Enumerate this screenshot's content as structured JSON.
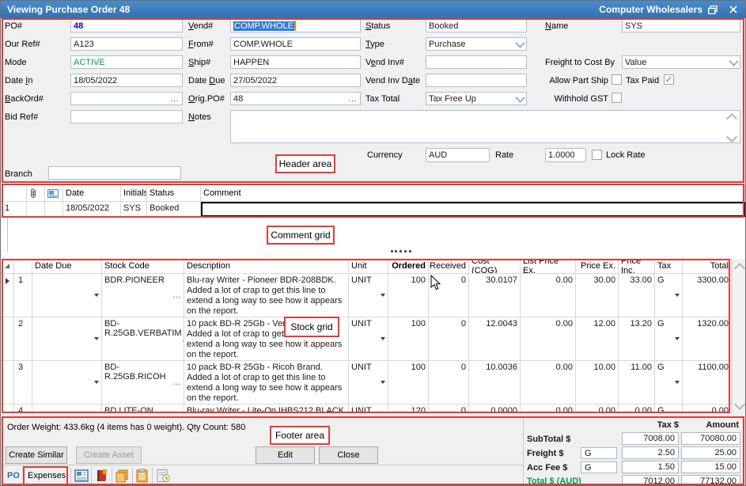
{
  "window": {
    "title": "Viewing Purchase Order 48",
    "app_name": "Computer Wholesalers"
  },
  "colors": {
    "titlebar_blue": "#3a7abf",
    "annotation_red": "#e23b38",
    "active_green": "#00a14b",
    "po_blue": "#0000d4",
    "selection_blue": "#2f7cd6"
  },
  "icons": {
    "check": "✓",
    "ellipsis": "…",
    "close": "✕"
  },
  "header": {
    "po": {
      "label": "PO#",
      "value": "48"
    },
    "our_ref": {
      "label": "Our Ref#",
      "value": "A123"
    },
    "mode": {
      "label": "Mode",
      "value": "ACTIVE"
    },
    "date_in": {
      "label": "Date In",
      "value": "18/05/2022"
    },
    "backord": {
      "label": "BackOrd#",
      "value": ""
    },
    "bid_ref": {
      "label": "Bid Ref#",
      "value": ""
    },
    "branch": {
      "label": "Branch",
      "value": ""
    },
    "vend": {
      "label": "Vend#",
      "value": "COMP.WHOLE"
    },
    "from": {
      "label": "From#",
      "value": "COMP.WHOLE"
    },
    "ship": {
      "label": "Ship#",
      "value": "HAPPEN"
    },
    "date_due": {
      "label": "Date Due",
      "value": "27/05/2022"
    },
    "orig_po": {
      "label": "Orig.PO#",
      "value": "48"
    },
    "notes": {
      "label": "Notes",
      "value": ""
    },
    "status": {
      "label": "Status",
      "value": "Booked"
    },
    "type": {
      "label": "Type",
      "value": "Purchase"
    },
    "vend_inv": {
      "label": "Vend Inv#",
      "value": ""
    },
    "vend_inv_date": {
      "label": "Vend Inv Date",
      "value": ""
    },
    "tax_total": {
      "label": "Tax Total",
      "value": "Tax Free Up"
    },
    "name": {
      "label": "Name",
      "value": "SYS"
    },
    "freight_cost_by": {
      "label": "Freight to Cost By",
      "value": "Value"
    },
    "allow_part_ship": {
      "label": "Allow Part Ship",
      "checked": false
    },
    "tax_paid": {
      "label": "Tax Paid",
      "checked": true
    },
    "withhold_gst": {
      "label": "Withhold GST",
      "checked": false
    },
    "currency": {
      "label": "Currency",
      "value": "AUD"
    },
    "rate": {
      "label": "Rate",
      "value": "1.0000"
    },
    "lock_rate": {
      "label": "Lock Rate",
      "checked": false
    }
  },
  "comment_grid": {
    "columns": {
      "date": "Date",
      "initials": "Initials",
      "status": "Status",
      "comment": "Comment"
    },
    "rows": [
      {
        "num": "1",
        "date": "18/05/2022",
        "initials": "SYS",
        "status": "Booked",
        "comment": ""
      }
    ]
  },
  "stock_grid": {
    "columns": {
      "date_due": "Date Due",
      "stock_code": "Stock Code",
      "description": "Description",
      "unit": "Unit",
      "ordered": "Ordered",
      "received": "Received",
      "cost": "Cost (COG)",
      "list_price": "List Price Ex.",
      "price_ex": "Price Ex.",
      "price_inc": "Price Inc.",
      "tax": "Tax",
      "total": "Total"
    },
    "rows": [
      {
        "num": "1",
        "date_due": "",
        "stock_code": "BDR.PIONEER",
        "description": "Blu-ray Writer - Pioneer BDR-208BDK.  Added a lot of crap to get this line to extend a long way to see how it appears on the report.",
        "unit": "UNIT",
        "ordered": "100",
        "received": "0",
        "cost": "30.0107",
        "list_price": "0.00",
        "price_ex": "30.00",
        "price_inc": "33.00",
        "tax": "G",
        "total": "3300.00"
      },
      {
        "num": "2",
        "date_due": "",
        "stock_code": "BD-R.25GB.VERBATIM",
        "description": "10 pack BD-R 25Gb - Verbatim Brand.  Added a lot of crap to get this line to extend a long way to see how it appears on the report.",
        "unit": "UNIT",
        "ordered": "100",
        "received": "0",
        "cost": "12.0043",
        "list_price": "0.00",
        "price_ex": "12.00",
        "price_inc": "13.20",
        "tax": "G",
        "total": "1320.00"
      },
      {
        "num": "3",
        "date_due": "",
        "stock_code": "BD-R.25GB.RICOH",
        "description": "10 pack BD-R 25Gb - Ricoh Brand.  Added a lot of crap to get this line to extend a long way to see how it appears on the report.",
        "unit": "UNIT",
        "ordered": "100",
        "received": "0",
        "cost": "10.0036",
        "list_price": "0.00",
        "price_ex": "10.00",
        "price_inc": "11.00",
        "tax": "G",
        "total": "1100.00"
      },
      {
        "num": "4",
        "date_due": "",
        "stock_code": "BD.LITE-ON",
        "description": "Blu-ray Writer - Lite-On IHBS212 BLACK",
        "unit": "UNIT",
        "ordered": "120",
        "received": "0",
        "cost": "0.0000",
        "list_price": "0.00",
        "price_ex": "0.00",
        "price_inc": "0.00",
        "tax": "G",
        "total": "0.00"
      }
    ]
  },
  "footer": {
    "order_info": "Order Weight: 433.6kg (4 items has 0 weight).   Qty Count: 580",
    "buttons": {
      "create_similar": "Create Similar",
      "create_asset": "Create Asset",
      "edit": "Edit",
      "close": "Close"
    },
    "tabs": {
      "po": "PO",
      "expenses": "Expenses"
    },
    "totals": {
      "tax_header": "Tax $",
      "amount_header": "Amount",
      "rows": [
        {
          "label": "SubTotal $",
          "g": "",
          "tax": "7008.00",
          "amount": "70080.00"
        },
        {
          "label": "Freight $",
          "g": "G",
          "tax": "2.50",
          "amount": "25.00"
        },
        {
          "label": "Acc Fee $",
          "g": "G",
          "tax": "1.50",
          "amount": "15.00"
        },
        {
          "label": "Total $ (AUD)",
          "g": "",
          "tax": "7012.00",
          "amount": "77132.00"
        }
      ]
    }
  },
  "annotations": {
    "header": "Header area",
    "comment": "Comment grid",
    "stock": "Stock grid",
    "footer": "Footer area"
  }
}
